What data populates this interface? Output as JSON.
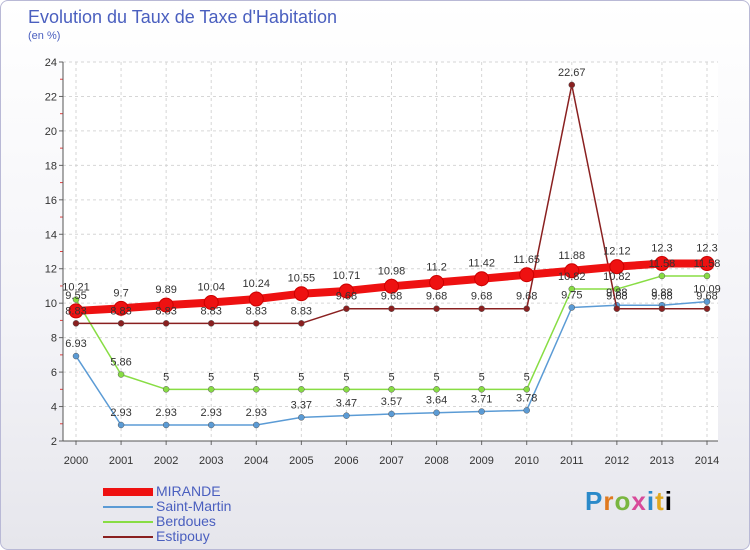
{
  "chart_data": {
    "type": "line",
    "title": "Evolution du Taux de Taxe d'Habitation",
    "ylabel": "(en %)",
    "ylim": [
      2,
      24
    ],
    "yticks": [
      2,
      4,
      6,
      8,
      10,
      12,
      14,
      16,
      18,
      20,
      22,
      24
    ],
    "x": [
      "2000",
      "2001",
      "2002",
      "2003",
      "2004",
      "2005",
      "2006",
      "2007",
      "2008",
      "2009",
      "2010",
      "2011",
      "2012",
      "2013",
      "2014"
    ],
    "grid": true,
    "legend": "bottom-left",
    "series": [
      {
        "name": "MIRANDE",
        "color": "#ee1111",
        "values": [
          9.55,
          9.7,
          9.89,
          10.04,
          10.24,
          10.55,
          10.71,
          10.98,
          11.2,
          11.42,
          11.65,
          11.88,
          12.12,
          12.3,
          12.3
        ],
        "labels": [
          "9.55",
          "9.7",
          "9.89",
          "10.04",
          "10.24",
          "10.55",
          "10.71",
          "10.98",
          "11.2",
          "11.42",
          "11.65",
          "11.88",
          "12.12",
          "12.3",
          "12.3"
        ]
      },
      {
        "name": "Saint-Martin",
        "color": "#5b9bd5",
        "values": [
          6.93,
          2.93,
          2.93,
          2.93,
          2.93,
          3.37,
          3.47,
          3.57,
          3.64,
          3.71,
          3.78,
          9.75,
          9.88,
          9.88,
          10.09
        ],
        "labels": [
          "6.93",
          "2.93",
          "2.93",
          "2.93",
          "2.93",
          "3.37",
          "3.47",
          "3.57",
          "3.64",
          "3.71",
          "3.78",
          "9.75",
          "9.88",
          "9.88",
          "10.09"
        ]
      },
      {
        "name": "Berdoues",
        "color": "#88dd44",
        "values": [
          10.21,
          5.86,
          5,
          5,
          5,
          5,
          5,
          5,
          5,
          5,
          5,
          10.82,
          10.82,
          11.58,
          11.58
        ],
        "labels": [
          "10.21",
          "5.86",
          "5",
          "5",
          "5",
          "5",
          "5",
          "5",
          "5",
          "5",
          "5",
          "10.82",
          "10.82",
          "11.58",
          "11.58"
        ]
      },
      {
        "name": "Estipouy",
        "color": "#8a2020",
        "values": [
          8.83,
          8.83,
          8.83,
          8.83,
          8.83,
          8.83,
          9.68,
          9.68,
          9.68,
          9.68,
          9.68,
          22.67,
          9.68,
          9.68,
          9.68
        ],
        "labels": [
          "8.83",
          "8.83",
          "8.83",
          "8.83",
          "8.83",
          "8.83",
          "9.68",
          "9.68",
          "9.68",
          "9.68",
          "9.68",
          "22.67",
          "9.68",
          "9.68",
          "9.68"
        ]
      }
    ]
  },
  "logo": {
    "letters": [
      "P",
      "r",
      "o",
      "x",
      "i",
      "t",
      "i"
    ]
  }
}
